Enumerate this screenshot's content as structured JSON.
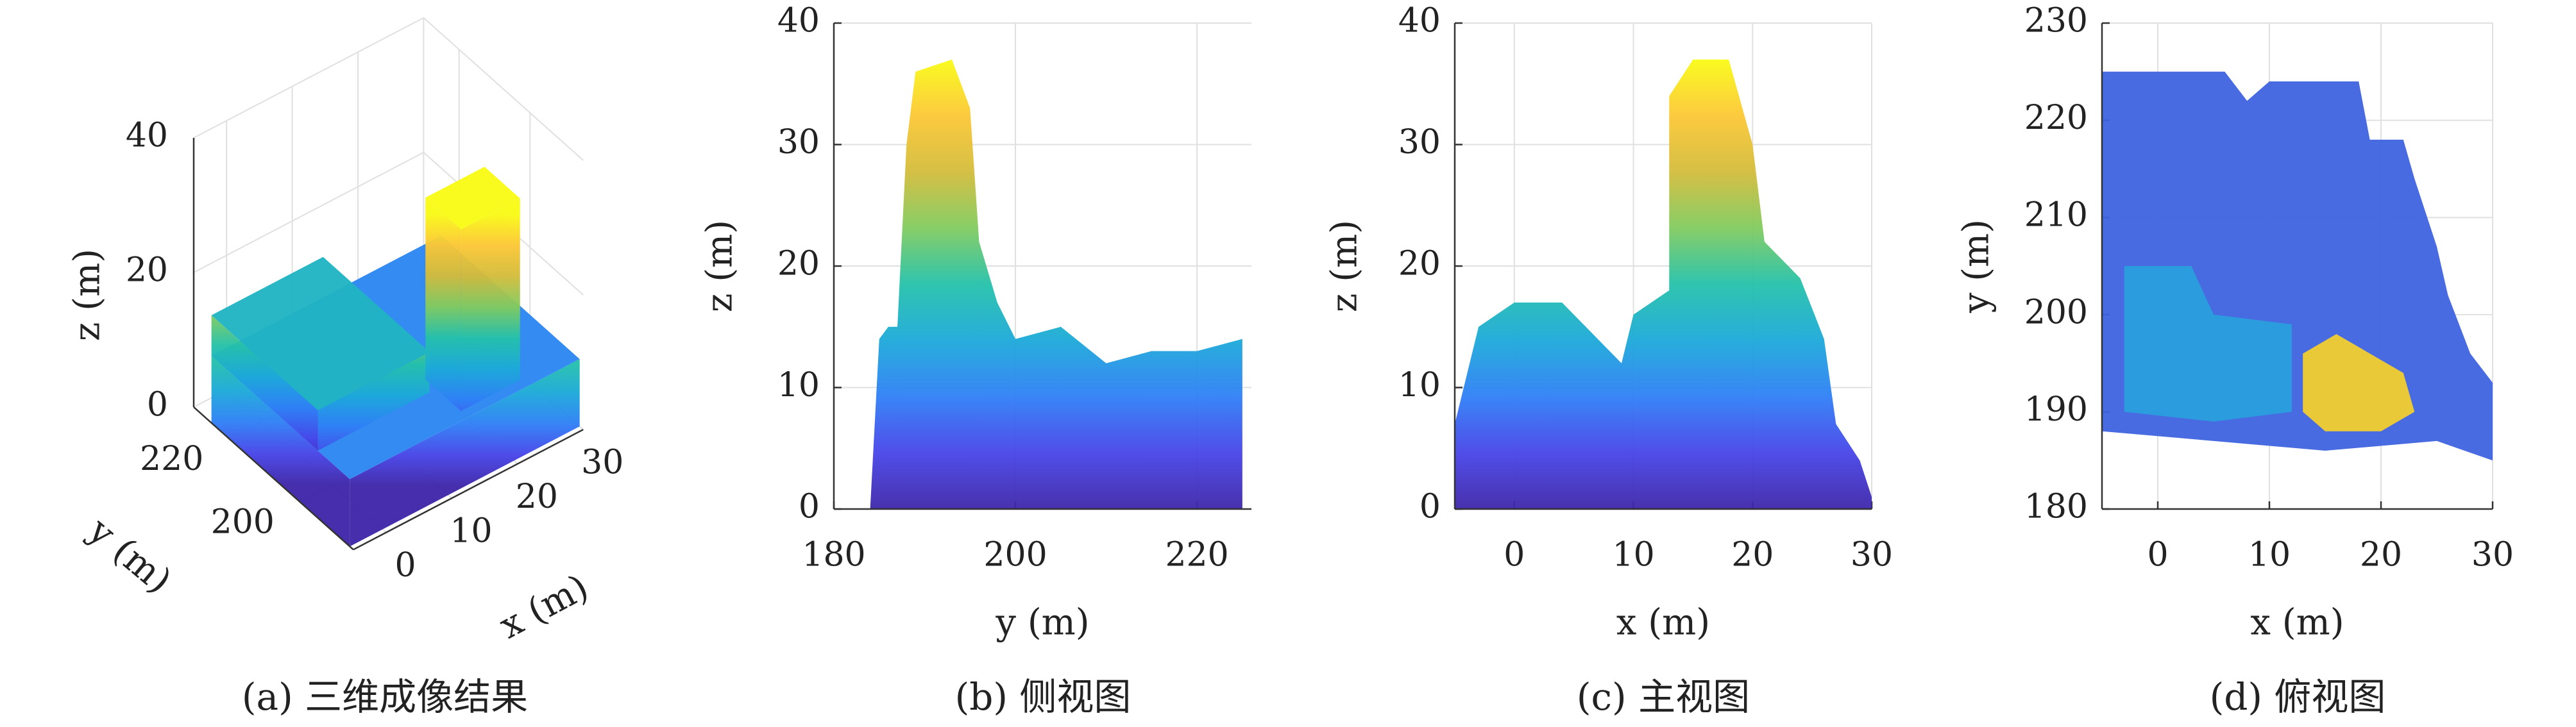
{
  "chart_data": [
    {
      "type": "boxes3d",
      "caption": "(a) 三维成像结果",
      "xlabel": "x (m)",
      "ylabel": "y (m)",
      "zlabel": "z (m)",
      "xlim": [
        -5,
        30
      ],
      "ylim": [
        185,
        230
      ],
      "zlim": [
        0,
        40
      ],
      "xticks": [
        0,
        10,
        20,
        30
      ],
      "yticks": [
        200,
        220
      ],
      "zticks": [
        0,
        20,
        40
      ],
      "grid": true,
      "colormap": [
        "#3e26a8",
        "#4744e8",
        "#2f7ff6",
        "#1ca9d9",
        "#24c1aa",
        "#81cb5f",
        "#d3bc3b",
        "#fcc735",
        "#f9fb15"
      ],
      "clim": [
        0,
        37
      ],
      "boxes": [
        {
          "x": [
            -5,
            30
          ],
          "y": [
            186,
            225
          ],
          "z": [
            0,
            10
          ]
        },
        {
          "x": [
            -5,
            12
          ],
          "y": [
            195,
            225
          ],
          "z": [
            10,
            16
          ]
        },
        {
          "x": [
            13,
            22
          ],
          "y": [
            188,
            198
          ],
          "z": [
            10,
            37
          ]
        }
      ]
    },
    {
      "type": "silhouette",
      "caption": "(b) 侧视图",
      "xlabel": "y (m)",
      "ylabel": "z (m)",
      "xlim": [
        180,
        226
      ],
      "ylim": [
        0,
        40
      ],
      "xticks": [
        180,
        200,
        220
      ],
      "yticks": [
        0,
        10,
        20,
        30,
        40
      ],
      "grid": true,
      "colormap": [
        "#3e26a8",
        "#4744e8",
        "#2f7ff6",
        "#1ca9d9",
        "#24c1aa",
        "#81cb5f",
        "#d3bc3b",
        "#fcc735",
        "#f9fb15"
      ],
      "clim": [
        0,
        37
      ],
      "x": [
        184,
        185,
        186,
        187,
        188,
        189,
        193,
        195,
        196,
        198,
        200,
        205,
        210,
        215,
        220,
        225,
        225
      ],
      "values": [
        0,
        14,
        15,
        15,
        30,
        36,
        37,
        33,
        22,
        17,
        14,
        15,
        12,
        13,
        13,
        14,
        0
      ]
    },
    {
      "type": "silhouette",
      "caption": "(c) 主视图",
      "xlabel": "x (m)",
      "ylabel": "z (m)",
      "xlim": [
        -5,
        30
      ],
      "ylim": [
        0,
        40
      ],
      "xticks": [
        0,
        10,
        20,
        30
      ],
      "yticks": [
        0,
        10,
        20,
        30,
        40
      ],
      "grid": true,
      "colormap": [
        "#3e26a8",
        "#4744e8",
        "#2f7ff6",
        "#1ca9d9",
        "#24c1aa",
        "#81cb5f",
        "#d3bc3b",
        "#fcc735",
        "#f9fb15"
      ],
      "clim": [
        0,
        37
      ],
      "x": [
        -5,
        -5,
        -3,
        0,
        4,
        7,
        9,
        10,
        13,
        13,
        15,
        18,
        20,
        21,
        24,
        26,
        27,
        29,
        30,
        30
      ],
      "values": [
        0,
        7,
        15,
        17,
        17,
        14,
        12,
        16,
        18,
        34,
        37,
        37,
        30,
        22,
        19,
        14,
        7,
        4,
        1,
        0
      ]
    },
    {
      "type": "regions",
      "caption": "(d) 俯视图",
      "xlabel": "x (m)",
      "ylabel": "y (m)",
      "xlim": [
        -5,
        30
      ],
      "ylim": [
        180,
        230
      ],
      "xticks": [
        0,
        10,
        20,
        30
      ],
      "yticks": [
        180,
        190,
        200,
        210,
        220,
        230
      ],
      "grid": true,
      "regions": [
        {
          "color": "#3f63e0",
          "x": [
            -5,
            -5,
            2,
            6,
            8,
            10,
            18,
            19,
            22,
            23,
            25,
            26,
            28,
            30,
            30,
            25,
            15,
            5
          ],
          "values": [
            188,
            225,
            225,
            225,
            222,
            224,
            224,
            218,
            218,
            214,
            207,
            202,
            196,
            193,
            185,
            187,
            186,
            187
          ]
        },
        {
          "color": "#2a9fdc",
          "x": [
            -3,
            -3,
            3,
            5,
            12,
            12,
            5
          ],
          "values": [
            190,
            205,
            205,
            200,
            199,
            190,
            189
          ]
        },
        {
          "color": "#f3cf2f",
          "x": [
            13,
            13,
            16,
            19,
            22,
            23,
            20,
            15
          ],
          "values": [
            190,
            196,
            198,
            196,
            194,
            190,
            188,
            188
          ]
        }
      ]
    }
  ]
}
